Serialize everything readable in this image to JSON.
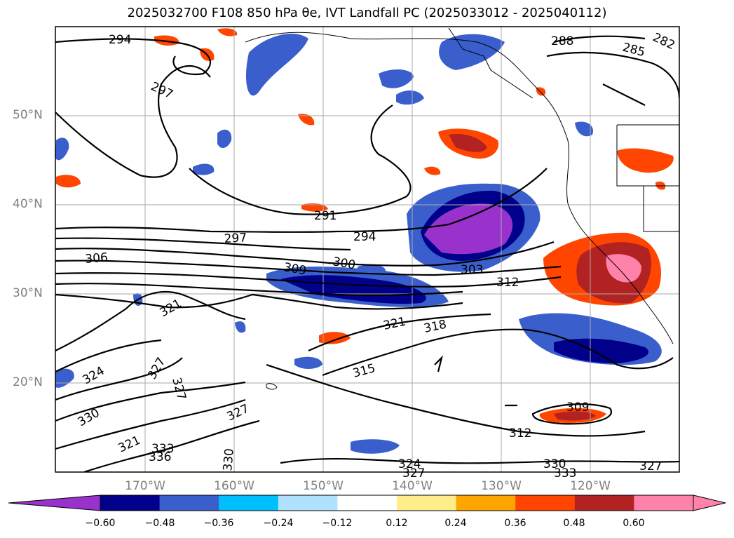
{
  "title": "2025032700 F108 850 hPa θe, IVT Landfall PC (2025033012 - 2025040112)",
  "lat_labels": [
    "50°N",
    "40°N",
    "30°N",
    "20°N"
  ],
  "lon_labels": [
    "170°W",
    "160°W",
    "150°W",
    "140°W",
    "130°W",
    "120°W"
  ],
  "colorbar": {
    "ticks": [
      "−0.60",
      "−0.48",
      "−0.36",
      "−0.24",
      "−0.12",
      "0.12",
      "0.24",
      "0.36",
      "0.48",
      "0.60"
    ],
    "colors": [
      "#9932CC",
      "#00008B",
      "#3A5FCD",
      "#00BFFF",
      "#B0E2FF",
      "#FFFFFF",
      "#FFEC8B",
      "#FFA500",
      "#FF4500",
      "#B22222",
      "#FF82AB",
      "#FF82AB"
    ],
    "under_color": "#9932CC",
    "over_color": "#FF82AB"
  },
  "contour_labels": [
    "294",
    "297",
    "288",
    "285",
    "291",
    "294",
    "297",
    "306",
    "309",
    "300",
    "303",
    "312",
    "321",
    "321",
    "318",
    "324",
    "327",
    "327",
    "315",
    "330",
    "327",
    "321",
    "333",
    "336",
    "330",
    "324",
    "327",
    "309",
    "312",
    "330",
    "333",
    "327",
    "282"
  ]
}
